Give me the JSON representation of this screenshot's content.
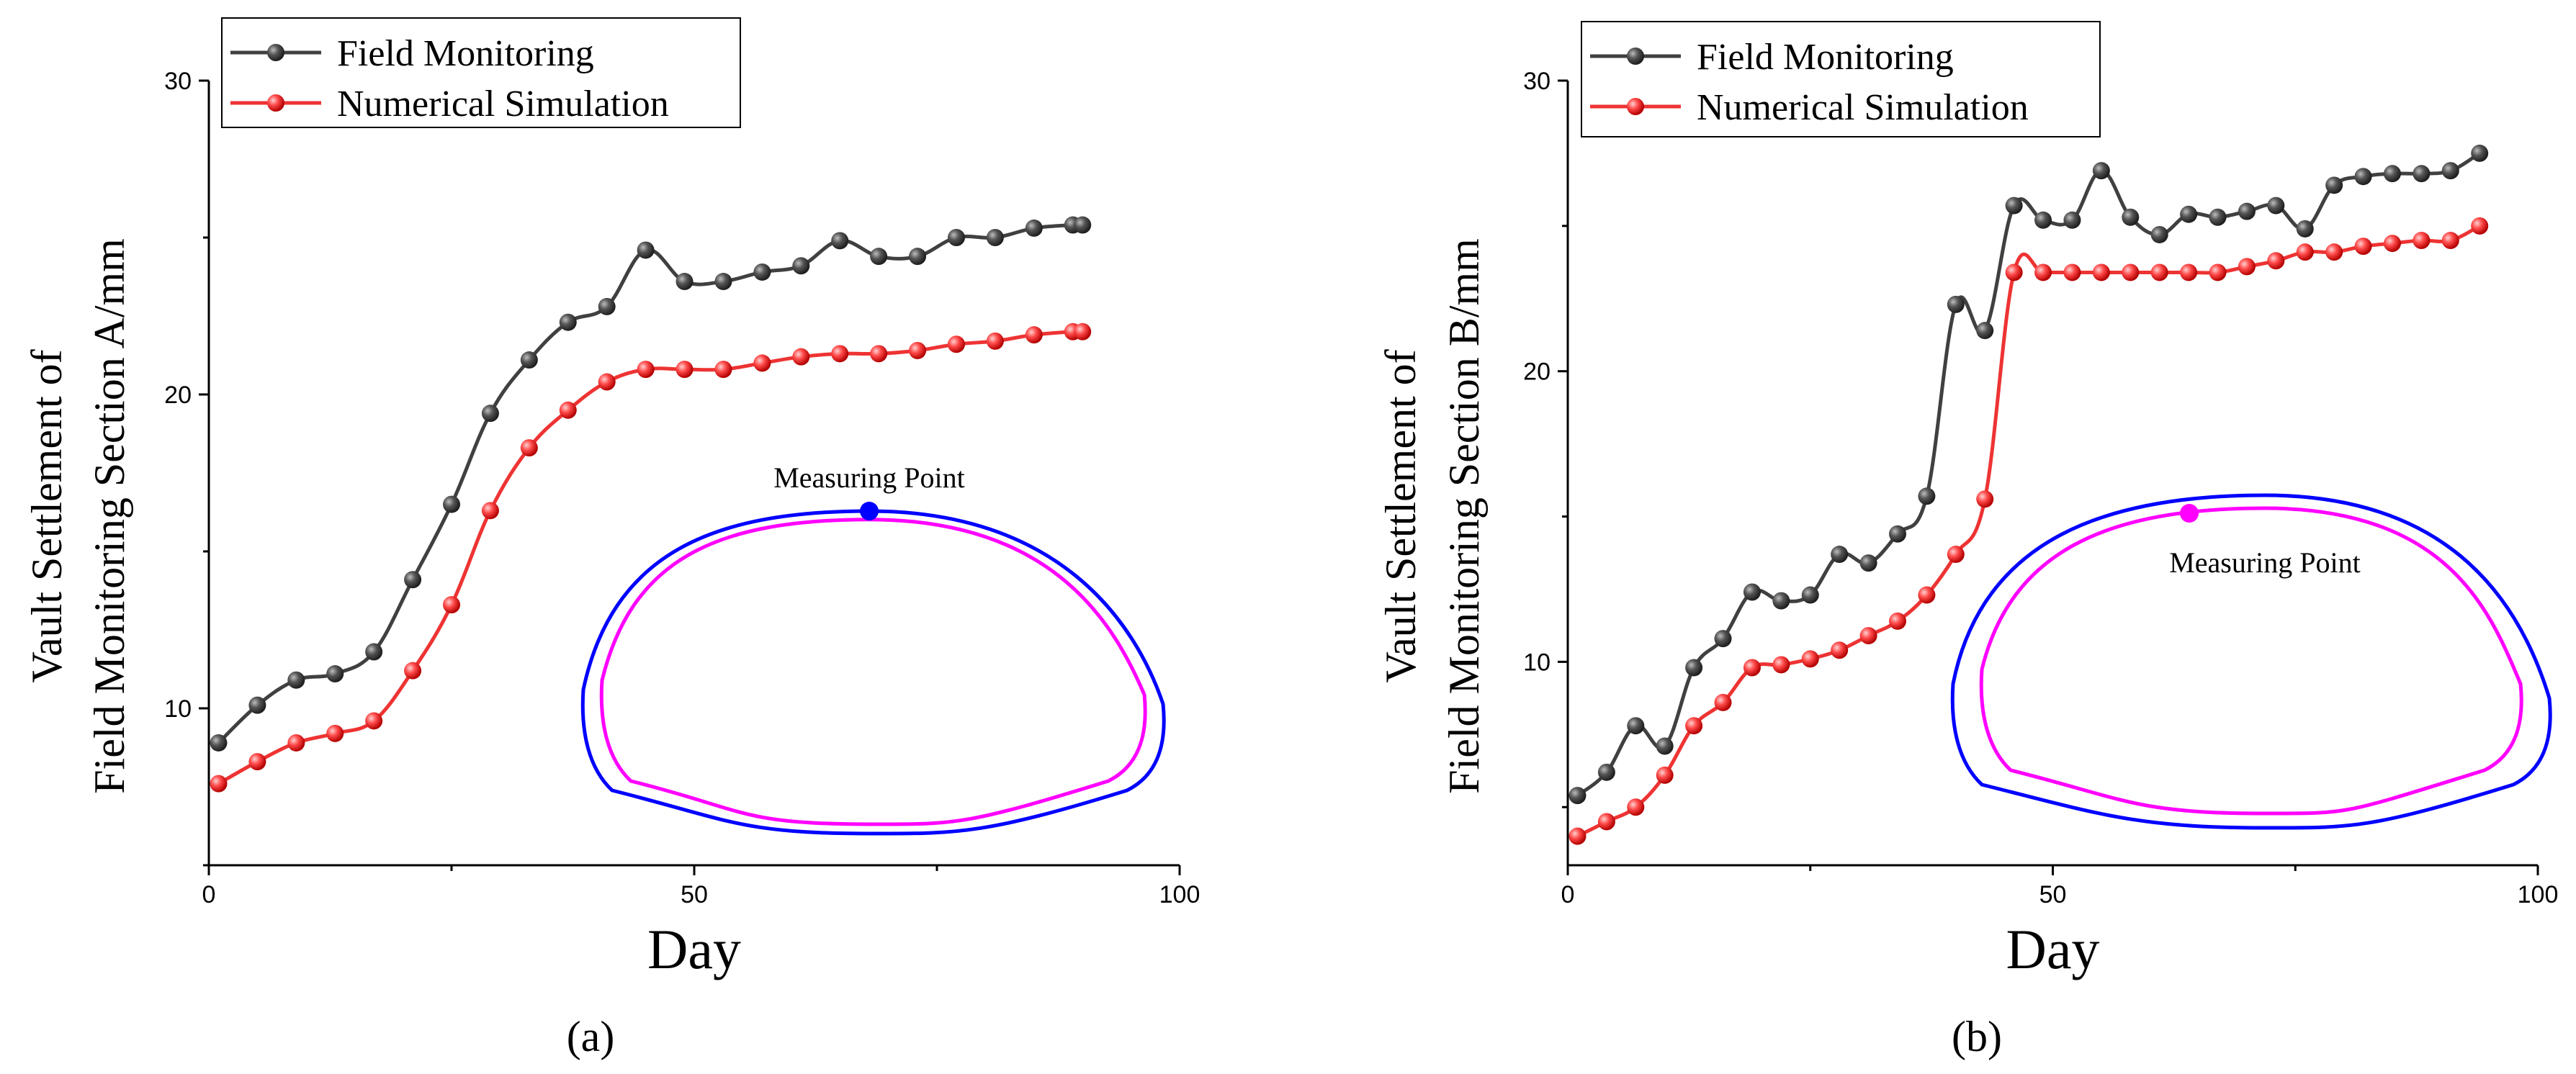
{
  "chart_data": [
    {
      "type": "line",
      "panel_label": "(a)",
      "xlabel": "Day",
      "ylabel_line1": "Vault Settlement of",
      "ylabel_line2": "Field Monitoring Section A/mm",
      "xlim": [
        0,
        100
      ],
      "ylim": [
        5,
        30
      ],
      "xticks": [
        0,
        50,
        100
      ],
      "yticks": [
        10,
        20,
        30
      ],
      "legend": {
        "position": "top-left",
        "entries": [
          "Field Monitoring",
          "Numerical Simulation"
        ]
      },
      "inset": {
        "label": "Measuring Point",
        "marker_color": "#0000ff",
        "outer_color": "#0000ff",
        "inner_color": "#ff00ff"
      },
      "series": [
        {
          "name": "Field Monitoring",
          "color": "#404040",
          "x": [
            1,
            5,
            9,
            13,
            17,
            21,
            25,
            29,
            33,
            37,
            41,
            45,
            49,
            53,
            57,
            61,
            65,
            69,
            73,
            77,
            81,
            85,
            89,
            90
          ],
          "y": [
            8.9,
            10.1,
            10.9,
            11.1,
            11.8,
            14.1,
            16.5,
            19.4,
            21.1,
            22.3,
            22.8,
            24.6,
            23.6,
            23.6,
            23.9,
            24.1,
            24.9,
            24.4,
            24.4,
            25.0,
            25.0,
            25.3,
            25.4,
            25.4
          ]
        },
        {
          "name": "Numerical Simulation",
          "color": "#ee3333",
          "x": [
            1,
            5,
            9,
            13,
            17,
            21,
            25,
            29,
            33,
            37,
            41,
            45,
            49,
            53,
            57,
            61,
            65,
            69,
            73,
            77,
            81,
            85,
            89,
            90
          ],
          "y": [
            7.6,
            8.3,
            8.9,
            9.2,
            9.6,
            11.2,
            13.3,
            16.3,
            18.3,
            19.5,
            20.4,
            20.8,
            20.8,
            20.8,
            21.0,
            21.2,
            21.3,
            21.3,
            21.4,
            21.6,
            21.7,
            21.9,
            22.0,
            22.0
          ]
        }
      ]
    },
    {
      "type": "line",
      "panel_label": "(b)",
      "xlabel": "Day",
      "ylabel_line1": "Vault Settlement of",
      "ylabel_line2": "Field Monitoring Section B/mm",
      "xlim": [
        0,
        100
      ],
      "ylim": [
        3,
        30
      ],
      "xticks": [
        0,
        50,
        100
      ],
      "yticks": [
        10,
        20,
        30
      ],
      "legend": {
        "position": "top-left",
        "entries": [
          "Field Monitoring",
          "Numerical Simulation"
        ]
      },
      "inset": {
        "label": "Measuring Point",
        "marker_color": "#ff00ff",
        "outer_color": "#0000ff",
        "inner_color": "#ff00ff"
      },
      "series": [
        {
          "name": "Field Monitoring",
          "color": "#404040",
          "x": [
            1,
            4,
            7,
            10,
            13,
            16,
            19,
            22,
            25,
            28,
            31,
            34,
            37,
            40,
            43,
            46,
            49,
            52,
            55,
            58,
            61,
            64,
            67,
            70,
            73,
            76,
            79,
            82,
            85,
            88,
            91,
            94
          ],
          "y": [
            5.4,
            6.2,
            7.8,
            7.1,
            9.8,
            10.8,
            12.4,
            12.1,
            12.3,
            13.7,
            13.4,
            14.4,
            15.7,
            22.3,
            21.4,
            25.7,
            25.2,
            25.2,
            26.9,
            25.3,
            24.7,
            25.4,
            25.3,
            25.5,
            25.7,
            24.9,
            26.4,
            26.7,
            26.8,
            26.8,
            26.9,
            27.5
          ]
        },
        {
          "name": "Numerical Simulation",
          "color": "#ee3333",
          "x": [
            1,
            4,
            7,
            10,
            13,
            16,
            19,
            22,
            25,
            28,
            31,
            34,
            37,
            40,
            43,
            46,
            49,
            52,
            55,
            58,
            61,
            64,
            67,
            70,
            73,
            76,
            79,
            82,
            85,
            88,
            91,
            94
          ],
          "y": [
            4.0,
            4.5,
            5.0,
            6.1,
            7.8,
            8.6,
            9.8,
            9.9,
            10.1,
            10.4,
            10.9,
            11.4,
            12.3,
            13.7,
            15.6,
            23.4,
            23.4,
            23.4,
            23.4,
            23.4,
            23.4,
            23.4,
            23.4,
            23.6,
            23.8,
            24.1,
            24.1,
            24.3,
            24.4,
            24.5,
            24.5,
            25.0
          ]
        }
      ]
    }
  ]
}
